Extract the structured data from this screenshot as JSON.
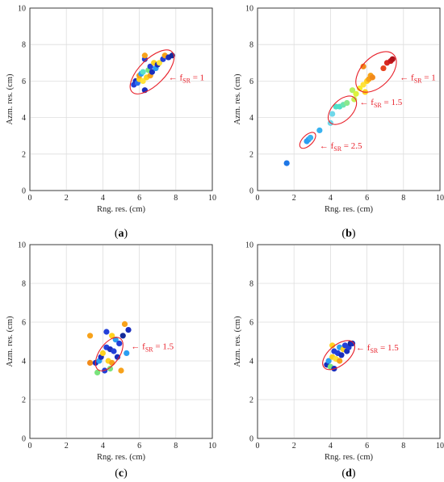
{
  "chart_data": [
    {
      "type": "scatter",
      "panel_label": "a",
      "xlabel": "Rng. res. (cm)",
      "ylabel": "Azm. res. (cm)",
      "xlim": [
        0,
        10
      ],
      "ylim": [
        0,
        10
      ],
      "xticks": [
        "0",
        "2",
        "4",
        "6",
        "8",
        "10"
      ],
      "yticks": [
        "0",
        "2",
        "4",
        "6",
        "8",
        "10"
      ],
      "grid": true,
      "points": [
        [
          5.7,
          5.8,
          "#2340d8"
        ],
        [
          5.8,
          6.0,
          "#1a2dbd"
        ],
        [
          5.9,
          5.9,
          "#2a6ef0"
        ],
        [
          6.0,
          6.1,
          "#ffd21f"
        ],
        [
          6.0,
          6.3,
          "#f7a21b"
        ],
        [
          6.1,
          6.4,
          "#2b9ef2"
        ],
        [
          6.2,
          6.0,
          "#ffe23a"
        ],
        [
          6.2,
          6.5,
          "#5ce0c9"
        ],
        [
          6.3,
          7.2,
          "#2340d8"
        ],
        [
          6.3,
          7.4,
          "#f7a21b"
        ],
        [
          6.3,
          5.5,
          "#1a2dbd"
        ],
        [
          6.4,
          6.2,
          "#ffd21f"
        ],
        [
          6.5,
          6.6,
          "#7ae37c"
        ],
        [
          6.6,
          6.8,
          "#2340d8"
        ],
        [
          6.6,
          6.3,
          "#f7a21b"
        ],
        [
          6.7,
          6.5,
          "#1a2dbd"
        ],
        [
          6.8,
          7.0,
          "#ffd21f"
        ],
        [
          6.9,
          6.7,
          "#2b9ef2"
        ],
        [
          7.0,
          6.9,
          "#1a2dbd"
        ],
        [
          7.1,
          7.0,
          "#ffe23a"
        ],
        [
          7.3,
          7.2,
          "#2340d8"
        ],
        [
          7.4,
          7.4,
          "#f7a21b"
        ],
        [
          7.6,
          7.3,
          "#1a2dbd"
        ],
        [
          7.8,
          7.4,
          "#142a9a"
        ]
      ],
      "ellipses": [
        {
          "cx": 6.7,
          "cy": 6.5,
          "rx": 1.55,
          "ry": 0.7,
          "angle_deg": 45
        }
      ],
      "annotations": [
        {
          "arrow": "← f",
          "sub": "SR",
          "rest": " = 1",
          "x": 7.6,
          "y": 6.05
        }
      ]
    },
    {
      "type": "scatter",
      "panel_label": "b",
      "xlabel": "Rng. res. (cm)",
      "ylabel": "Azm. res. (cm)",
      "xlim": [
        0,
        10
      ],
      "ylim": [
        0,
        10
      ],
      "xticks": [
        "0",
        "2",
        "4",
        "6",
        "8",
        "10"
      ],
      "yticks": [
        "0",
        "2",
        "4",
        "6",
        "8",
        "10"
      ],
      "grid": true,
      "points": [
        [
          1.6,
          1.5,
          "#1f77e6"
        ],
        [
          2.7,
          2.7,
          "#2b9ef2"
        ],
        [
          2.8,
          2.8,
          "#2b9ef2"
        ],
        [
          2.9,
          2.9,
          "#38b2f0"
        ],
        [
          3.4,
          3.3,
          "#38b2f0"
        ],
        [
          4.0,
          3.7,
          "#6fd8ea"
        ],
        [
          4.1,
          4.2,
          "#6fd8ea"
        ],
        [
          4.3,
          4.6,
          "#4fe0c8"
        ],
        [
          4.5,
          4.6,
          "#4fe0c8"
        ],
        [
          4.7,
          4.7,
          "#6ce4b0"
        ],
        [
          4.9,
          4.8,
          "#8ae88e"
        ],
        [
          5.2,
          5.5,
          "#b5f062"
        ],
        [
          5.3,
          5.0,
          "#c8f050"
        ],
        [
          5.4,
          5.3,
          "#ddf23c"
        ],
        [
          5.6,
          5.6,
          "#f4f02a"
        ],
        [
          5.8,
          5.8,
          "#ffe23a"
        ],
        [
          5.9,
          5.4,
          "#ffd21f"
        ],
        [
          6.0,
          6.0,
          "#ffd21f"
        ],
        [
          6.1,
          6.1,
          "#f7a21b"
        ],
        [
          6.2,
          6.3,
          "#f7a21b"
        ],
        [
          5.8,
          6.8,
          "#f28a1a"
        ],
        [
          6.3,
          6.2,
          "#f28a1a"
        ],
        [
          6.9,
          6.7,
          "#e8451f"
        ],
        [
          7.1,
          7.0,
          "#d8281f"
        ],
        [
          7.3,
          7.1,
          "#c8181c"
        ],
        [
          7.4,
          7.2,
          "#b0121a"
        ]
      ],
      "ellipses": [
        {
          "cx": 6.5,
          "cy": 6.5,
          "rx": 1.35,
          "ry": 0.8,
          "angle_deg": 45
        },
        {
          "cx": 4.65,
          "cy": 4.4,
          "rx": 0.95,
          "ry": 0.55,
          "angle_deg": 45
        },
        {
          "cx": 2.75,
          "cy": 2.75,
          "rx": 0.55,
          "ry": 0.28,
          "angle_deg": 45
        }
      ],
      "annotations": [
        {
          "arrow": "← f",
          "sub": "SR",
          "rest": " = 1",
          "x": 7.8,
          "y": 6.05
        },
        {
          "arrow": "← f",
          "sub": "SR",
          "rest": " = 1.5",
          "x": 5.6,
          "y": 4.7
        },
        {
          "arrow": "← f",
          "sub": "SR",
          "rest": " = 2.5",
          "x": 3.4,
          "y": 2.3
        }
      ]
    },
    {
      "type": "scatter",
      "panel_label": "c",
      "xlabel": "Rng. res. (cm)",
      "ylabel": "Azm. res. (cm)",
      "xlim": [
        0,
        10
      ],
      "ylim": [
        0,
        10
      ],
      "xticks": [
        "0",
        "2",
        "4",
        "6",
        "8",
        "10"
      ],
      "yticks": [
        "0",
        "2",
        "4",
        "6",
        "8",
        "10"
      ],
      "grid": true,
      "points": [
        [
          3.3,
          5.3,
          "#f7a21b"
        ],
        [
          3.3,
          3.9,
          "#f28a1a"
        ],
        [
          3.6,
          3.9,
          "#1a2dbd"
        ],
        [
          3.7,
          3.4,
          "#7ae37c"
        ],
        [
          3.8,
          4.0,
          "#2b9ef2"
        ],
        [
          3.9,
          4.2,
          "#1a2dbd"
        ],
        [
          4.0,
          4.4,
          "#ffd21f"
        ],
        [
          4.1,
          3.5,
          "#2340d8"
        ],
        [
          4.2,
          4.7,
          "#2340d8"
        ],
        [
          4.2,
          5.5,
          "#2340d8"
        ],
        [
          4.3,
          4.0,
          "#ffd21f"
        ],
        [
          4.4,
          3.6,
          "#7ae37c"
        ],
        [
          4.4,
          4.6,
          "#1a2dbd"
        ],
        [
          4.5,
          3.9,
          "#f7a21b"
        ],
        [
          4.5,
          5.3,
          "#ffd21f"
        ],
        [
          4.6,
          4.5,
          "#2340d8"
        ],
        [
          4.7,
          5.1,
          "#2b9ef2"
        ],
        [
          4.8,
          4.2,
          "#1a2dbd"
        ],
        [
          4.9,
          4.9,
          "#2340d8"
        ],
        [
          5.0,
          3.5,
          "#f7a21b"
        ],
        [
          5.1,
          5.3,
          "#142a9a"
        ],
        [
          5.2,
          5.9,
          "#f7a21b"
        ],
        [
          5.3,
          4.4,
          "#2b9ef2"
        ],
        [
          5.4,
          5.6,
          "#1a2dbd"
        ]
      ],
      "ellipses": [
        {
          "cx": 4.35,
          "cy": 4.35,
          "rx": 1.05,
          "ry": 0.55,
          "angle_deg": 55
        }
      ],
      "annotations": [
        {
          "arrow": "← f",
          "sub": "SR",
          "rest": " = 1.5",
          "x": 5.55,
          "y": 4.6
        }
      ]
    },
    {
      "type": "scatter",
      "panel_label": "d",
      "xlabel": "Rng. res. (cm)",
      "ylabel": "Azm. res. (cm)",
      "xlim": [
        0,
        10
      ],
      "ylim": [
        0,
        10
      ],
      "xticks": [
        "0",
        "2",
        "4",
        "6",
        "8",
        "10"
      ],
      "yticks": [
        "0",
        "2",
        "4",
        "6",
        "8",
        "10"
      ],
      "grid": true,
      "points": [
        [
          3.8,
          3.8,
          "#1a2dbd"
        ],
        [
          3.9,
          4.0,
          "#2b9ef2"
        ],
        [
          4.0,
          3.7,
          "#7ae37c"
        ],
        [
          4.1,
          4.2,
          "#ffd21f"
        ],
        [
          4.1,
          4.8,
          "#ffd21f"
        ],
        [
          4.2,
          4.5,
          "#2340d8"
        ],
        [
          4.2,
          3.6,
          "#1a2dbd"
        ],
        [
          4.3,
          4.1,
          "#ffe23a"
        ],
        [
          4.4,
          4.4,
          "#2340d8"
        ],
        [
          4.5,
          4.7,
          "#2b9ef2"
        ],
        [
          4.5,
          4.0,
          "#f7a21b"
        ],
        [
          4.6,
          4.3,
          "#1a2dbd"
        ],
        [
          4.7,
          4.6,
          "#ffd21f"
        ],
        [
          4.8,
          4.8,
          "#2340d8"
        ],
        [
          4.9,
          4.5,
          "#1a2dbd"
        ],
        [
          5.0,
          4.7,
          "#2340d8"
        ],
        [
          5.1,
          4.9,
          "#142a9a"
        ],
        [
          5.2,
          4.9,
          "#1a2dbd"
        ]
      ],
      "ellipses": [
        {
          "cx": 4.45,
          "cy": 4.3,
          "rx": 1.05,
          "ry": 0.55,
          "angle_deg": 40
        }
      ],
      "annotations": [
        {
          "arrow": "← f",
          "sub": "SR",
          "rest": " = 1.5",
          "x": 5.4,
          "y": 4.55
        }
      ]
    }
  ]
}
